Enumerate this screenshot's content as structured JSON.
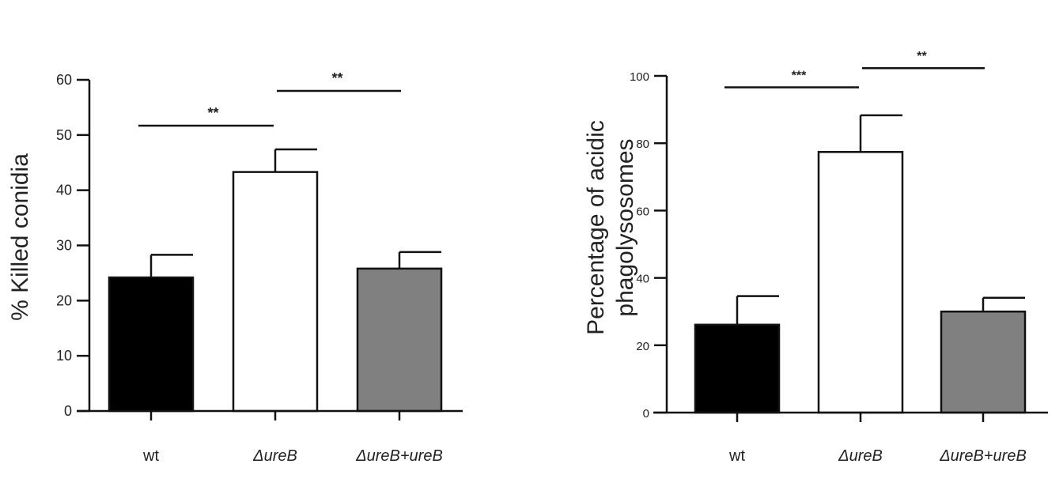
{
  "chart_data": [
    {
      "type": "bar",
      "title": "",
      "xlabel": "",
      "ylabel": "% Killed conidia",
      "ylim": [
        0,
        60
      ],
      "yticks": [
        0,
        10,
        20,
        30,
        40,
        50,
        60
      ],
      "categories": [
        "wt",
        "ΔureB",
        "ΔureB+ureB"
      ],
      "values": [
        24.2,
        43.3,
        25.8
      ],
      "error_upper": [
        28.3,
        47.4,
        28.8
      ],
      "bar_colors": [
        "#000000",
        "#ffffff",
        "#808080"
      ],
      "significance": [
        {
          "from": 0,
          "to": 1,
          "label": "**",
          "y": 51.7
        },
        {
          "from": 1,
          "to": 2,
          "label": "**",
          "y": 58
        }
      ],
      "grid": false
    },
    {
      "type": "bar",
      "title": "",
      "xlabel": "",
      "ylabel": [
        "Percentage of acidic",
        "phagolysosomes"
      ],
      "ylim": [
        0,
        100
      ],
      "yticks": [
        0,
        20,
        40,
        60,
        80,
        100
      ],
      "categories": [
        "wt",
        "ΔureB",
        "ΔureB+ureB"
      ],
      "values": [
        26.1,
        77.4,
        30.0
      ],
      "error_upper": [
        34.6,
        88.3,
        34.1
      ],
      "bar_colors": [
        "#000000",
        "#ffffff",
        "#808080"
      ],
      "significance": [
        {
          "from": 0,
          "to": 1,
          "label": "***",
          "y": 96.6
        },
        {
          "from": 1,
          "to": 2,
          "label": "**",
          "y": 102.3
        }
      ],
      "grid": false
    }
  ]
}
